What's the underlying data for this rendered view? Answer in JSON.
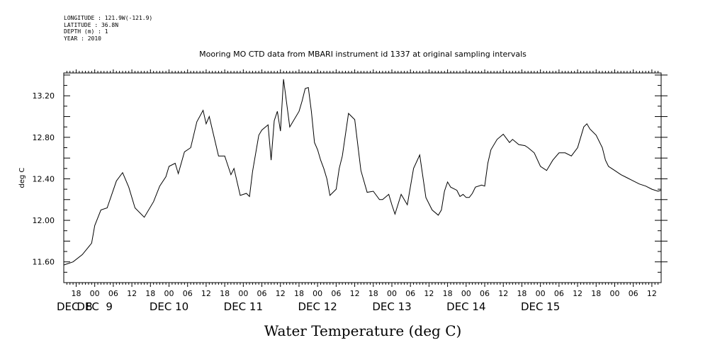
{
  "meta": {
    "longitude": "LONGITUDE : 121.9W(-121.9)",
    "latitude": "LATITUDE : 36.8N",
    "depth": "DEPTH (m) : 1",
    "year": "YEAR : 2010"
  },
  "chart_data": {
    "type": "line",
    "title": "Mooring MO CTD data from MBARI instrument id 1337 at original sampling intervals",
    "xlabel": "Water Temperature (deg C)",
    "ylabel": "deg C",
    "ylim": [
      11.4,
      13.42
    ],
    "yticks": [
      "11.60",
      "12.00",
      "12.40",
      "12.80",
      "13.20"
    ],
    "xlim": [
      "2010-12-07T14:00",
      "2010-12-15T15:00"
    ],
    "hour_ticks": [
      "18",
      "00",
      "06",
      "12",
      "18",
      "00",
      "06",
      "12",
      "18",
      "00",
      "06",
      "12",
      "18",
      "00",
      "06",
      "12",
      "18",
      "00",
      "06",
      "12",
      "18",
      "00",
      "06",
      "12",
      "18",
      "00",
      "06",
      "12",
      "18",
      "00",
      "06",
      "12"
    ],
    "day_labels": [
      "DEC  8",
      "DEC  9",
      "DEC 10",
      "DEC 11",
      "DEC 12",
      "DEC 13",
      "DEC 14",
      "DEC 15"
    ],
    "grid": false,
    "series": [
      {
        "color": "#000000",
        "x": [
          "2010-12-07T14:00",
          "2010-12-07T17:00",
          "2010-12-07T20:00",
          "2010-12-07T23:00",
          "2010-12-08T00:00",
          "2010-12-08T02:00",
          "2010-12-08T04:00",
          "2010-12-08T07:00",
          "2010-12-08T09:00",
          "2010-12-08T11:00",
          "2010-12-08T13:00",
          "2010-12-08T16:00",
          "2010-12-08T19:00",
          "2010-12-08T21:00",
          "2010-12-08T23:00",
          "2010-12-09T00:00",
          "2010-12-09T02:00",
          "2010-12-09T03:00",
          "2010-12-09T05:00",
          "2010-12-09T07:00",
          "2010-12-09T09:00",
          "2010-12-09T11:00",
          "2010-12-09T12:00",
          "2010-12-09T13:00",
          "2010-12-09T16:00",
          "2010-12-09T18:00",
          "2010-12-09T20:00",
          "2010-12-09T21:00",
          "2010-12-09T23:00",
          "2010-12-10T01:00",
          "2010-12-10T02:00",
          "2010-12-10T03:00",
          "2010-12-10T05:00",
          "2010-12-10T06:00",
          "2010-12-10T08:00",
          "2010-12-10T09:00",
          "2010-12-10T10:00",
          "2010-12-10T11:00",
          "2010-12-10T12:00",
          "2010-12-10T13:00",
          "2010-12-10T15:00",
          "2010-12-10T18:00",
          "2010-12-10T19:00",
          "2010-12-10T20:00",
          "2010-12-10T21:00",
          "2010-12-10T22:00",
          "2010-12-10T23:00",
          "2010-12-11T00:00",
          "2010-12-11T01:00",
          "2010-12-11T02:00",
          "2010-12-11T03:00",
          "2010-12-11T04:00",
          "2010-12-11T06:00",
          "2010-12-11T07:00",
          "2010-12-11T08:00",
          "2010-12-11T10:00",
          "2010-12-11T12:00",
          "2010-12-11T14:00",
          "2010-12-11T16:00",
          "2010-12-11T18:00",
          "2010-12-11T20:00",
          "2010-12-11T21:00",
          "2010-12-11T23:00",
          "2010-12-12T00:00",
          "2010-12-12T01:00",
          "2010-12-12T03:00",
          "2010-12-12T05:00",
          "2010-12-12T07:00",
          "2010-12-12T09:00",
          "2010-12-12T11:00",
          "2010-12-12T13:00",
          "2010-12-12T15:00",
          "2010-12-12T16:00",
          "2010-12-12T17:00",
          "2010-12-12T18:00",
          "2010-12-12T19:00",
          "2010-12-12T21:00",
          "2010-12-12T22:00",
          "2010-12-12T23:00",
          "2010-12-13T00:00",
          "2010-12-13T01:00",
          "2010-12-13T02:00",
          "2010-12-13T03:00",
          "2010-12-13T05:00",
          "2010-12-13T06:00",
          "2010-12-13T07:00",
          "2010-12-13T08:00",
          "2010-12-13T10:00",
          "2010-12-13T12:00",
          "2010-12-13T14:00",
          "2010-12-13T15:00",
          "2010-12-13T17:00",
          "2010-12-13T19:00",
          "2010-12-13T20:00",
          "2010-12-13T22:00",
          "2010-12-14T00:00",
          "2010-12-14T02:00",
          "2010-12-14T04:00",
          "2010-12-14T06:00",
          "2010-12-14T08:00",
          "2010-12-14T10:00",
          "2010-12-14T12:00",
          "2010-12-14T14:00",
          "2010-12-14T15:00",
          "2010-12-14T16:00",
          "2010-12-14T18:00",
          "2010-12-14T20:00",
          "2010-12-14T21:00",
          "2010-12-14T22:00",
          "2010-12-14T23:00",
          "2010-12-15T00:00",
          "2010-12-15T02:00",
          "2010-12-15T04:00",
          "2010-12-15T06:00",
          "2010-12-15T08:00",
          "2010-12-15T10:00",
          "2010-12-15T12:00",
          "2010-12-15T14:00",
          "2010-12-15T15:00"
        ],
        "y": [
          11.57,
          11.6,
          11.67,
          11.78,
          11.95,
          12.1,
          12.12,
          12.38,
          12.46,
          12.32,
          12.12,
          12.03,
          12.18,
          12.33,
          12.42,
          12.52,
          12.55,
          12.45,
          12.66,
          12.7,
          12.95,
          13.06,
          12.93,
          13.0,
          12.62,
          12.62,
          12.44,
          12.5,
          12.24,
          12.26,
          12.23,
          12.47,
          12.82,
          12.87,
          12.92,
          12.58,
          12.96,
          13.05,
          12.86,
          13.36,
          12.9,
          13.05,
          13.15,
          13.27,
          13.28,
          13.05,
          12.75,
          12.68,
          12.58,
          12.5,
          12.4,
          12.24,
          12.3,
          12.5,
          12.62,
          13.03,
          12.97,
          12.48,
          12.27,
          12.28,
          12.2,
          12.2,
          12.25,
          12.15,
          12.06,
          12.25,
          12.15,
          12.5,
          12.63,
          12.22,
          12.1,
          12.05,
          12.1,
          12.28,
          12.37,
          12.32,
          12.29,
          12.23,
          12.25,
          12.22,
          12.22,
          12.26,
          12.32,
          12.34,
          12.33,
          12.55,
          12.68,
          12.78,
          12.83,
          12.75,
          12.78,
          12.73,
          12.72,
          12.7,
          12.65,
          12.52,
          12.48,
          12.58,
          12.65,
          12.65,
          12.62,
          12.7,
          12.9,
          12.93,
          12.88,
          12.82,
          12.7,
          12.58,
          12.52,
          12.5,
          12.48,
          12.44,
          12.41,
          12.38,
          12.35,
          12.33,
          12.3,
          12.28,
          12.29
        ]
      }
    ]
  }
}
